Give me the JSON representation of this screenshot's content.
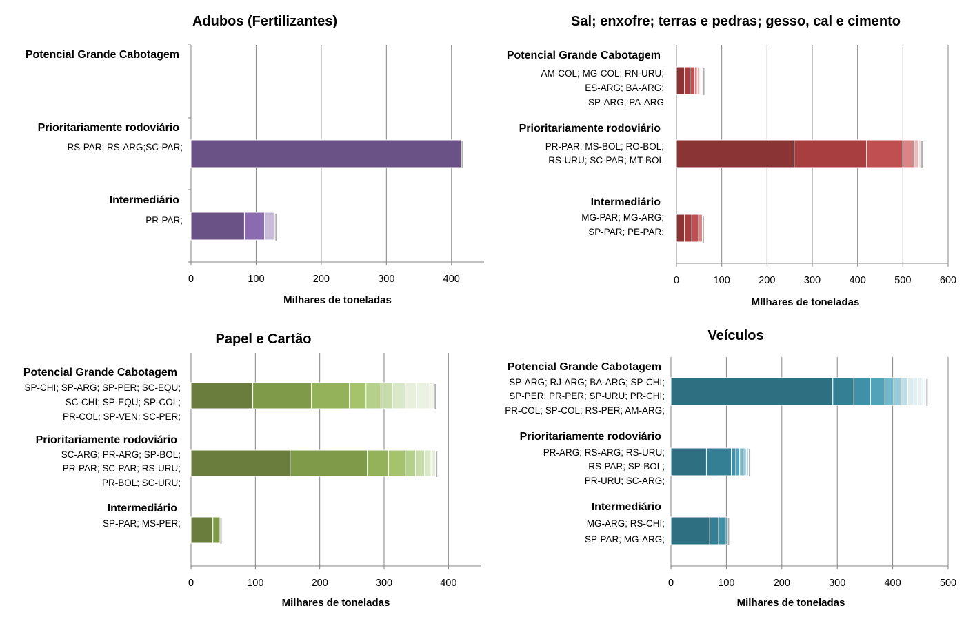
{
  "chart_data": [
    {
      "type": "bar",
      "orientation": "horizontal",
      "stacked": true,
      "title": "Adubos (Fertilizantes)",
      "xlabel": "Milhares de toneladas",
      "xlim": [
        0,
        450
      ],
      "xticks": [
        0,
        100,
        200,
        300,
        400
      ],
      "grid": true,
      "colors": [
        "#6a5186",
        "#8b6bb0",
        "#c9bcd9"
      ],
      "categories": [
        {
          "label": "Potencial Grande Cabotagem",
          "routes": [],
          "segments": []
        },
        {
          "label": "Prioritariamente rodoviário",
          "routes": [
            "RS-PAR; RS-ARG;SC-PAR;"
          ],
          "segments": [
            415
          ]
        },
        {
          "label": "Intermediário",
          "routes": [
            "PR-PAR;"
          ],
          "segments": [
            82,
            31,
            16
          ]
        }
      ]
    },
    {
      "type": "bar",
      "orientation": "horizontal",
      "stacked": true,
      "title": "Sal; enxofre; terras e pedras; gesso, cal e cimento",
      "xlabel": "MIlhares de toneladas",
      "xlim": [
        0,
        600
      ],
      "xticks": [
        0,
        100,
        200,
        300,
        400,
        500,
        600
      ],
      "grid": true,
      "colors": [
        "#8b3436",
        "#a83e40",
        "#c04f51",
        "#d98486",
        "#ebbcbd",
        "#f6e0e0"
      ],
      "categories": [
        {
          "label": "Potencial Grande Cabotagem",
          "routes": [
            "AM-COL; MG-COL; RN-URU;",
            "ES-ARG; BA-ARG;",
            "SP-ARG; PA-ARG"
          ],
          "segments": [
            18,
            12,
            10,
            6,
            4,
            3,
            3,
            2
          ]
        },
        {
          "label": "Prioritariamente rodoviário",
          "routes": [
            "PR-PAR; MS-BOL; RO-BOL;",
            "RS-URU; SC-PAR; MT-BOL"
          ],
          "segments": [
            260,
            160,
            80,
            25,
            10,
            5
          ]
        },
        {
          "label": "Intermediário",
          "routes": [
            "MG-PAR; MG-ARG;",
            "SP-PAR; PE-PAR;"
          ],
          "segments": [
            18,
            16,
            15,
            8
          ]
        }
      ]
    },
    {
      "type": "bar",
      "orientation": "horizontal",
      "stacked": true,
      "title": "Papel e Cartão",
      "xlabel": "Milhares de toneladas",
      "xlim": [
        0,
        450
      ],
      "xticks": [
        0,
        100,
        200,
        300,
        400
      ],
      "grid": true,
      "colors": [
        "#6b7d3c",
        "#7f9a49",
        "#94b25a",
        "#a4c36b",
        "#b5d08a",
        "#c7dcaa",
        "#d9e8c7",
        "#e8f0dd"
      ],
      "categories": [
        {
          "label": "Potencial Grande Cabotagem",
          "routes": [
            "SP-CHI; SP-ARG; SP-PER; SC-EQU;",
            "SC-CHI; SP-EQU; SP-COL;",
            "PR-COL; SP-VEN; SC-PER;"
          ],
          "segments": [
            96,
            91,
            59,
            26,
            23,
            18,
            20,
            18,
            17,
            10
          ]
        },
        {
          "label": "Prioritariamente rodoviário",
          "routes": [
            "SC-ARG; PR-ARG; SP-BOL;",
            "PR-PAR; SC-PAR; RS-URU;",
            "PR-BOL; SC-URU;"
          ],
          "segments": [
            154,
            120,
            33,
            26,
            16,
            14,
            10,
            7
          ]
        },
        {
          "label": "Intermediário",
          "routes": [
            "SP-PAR; MS-PER;"
          ],
          "segments": [
            34,
            11
          ]
        }
      ]
    },
    {
      "type": "bar",
      "orientation": "horizontal",
      "stacked": true,
      "title": "Veículos",
      "xlabel": "Milhares de toneladas",
      "xlim": [
        0,
        500
      ],
      "xticks": [
        0,
        100,
        200,
        300,
        400,
        500
      ],
      "grid": true,
      "colors": [
        "#2f6f82",
        "#357f95",
        "#3f91a8",
        "#52a3ba",
        "#72b7cb",
        "#98cbda",
        "#bcdde7",
        "#dcedf2"
      ],
      "categories": [
        {
          "label": "Potencial Grande Cabotagem",
          "routes": [
            "SP-ARG; RJ-ARG; BA-ARG; SP-CHI;",
            "SP-PER; PR-PER; SP-URU; PR-CHI;",
            "PR-COL; SP-COL; RS-PER; AM-ARG;"
          ],
          "segments": [
            292,
            38,
            30,
            26,
            16,
            13,
            12,
            11,
            7,
            6,
            5,
            4
          ]
        },
        {
          "label": "Prioritariamente rodoviário",
          "routes": [
            "PR-ARG; RS-ARG; RS-URU;",
            "RS-PAR; SP-BOL;",
            "PR-URU; SC-ARG;"
          ],
          "segments": [
            64,
            45,
            8,
            7,
            6,
            6,
            4
          ]
        },
        {
          "label": "Intermediário",
          "routes": [
            "MG-ARG; RS-CHI;",
            "SP-PAR; MG-ARG;"
          ],
          "segments": [
            70,
            16,
            12,
            4
          ]
        }
      ]
    }
  ]
}
